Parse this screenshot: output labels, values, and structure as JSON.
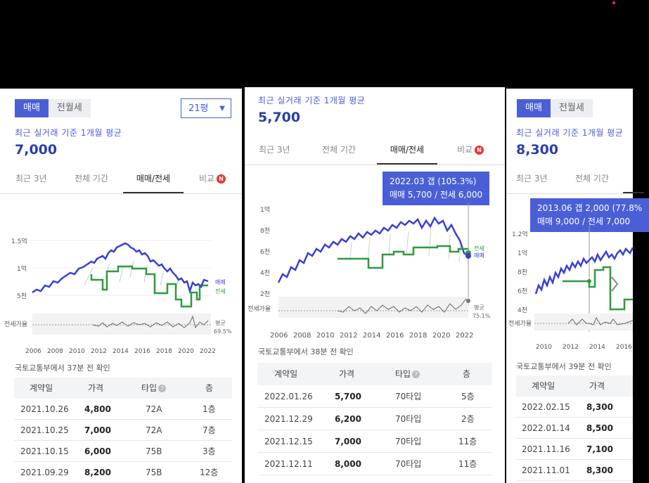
{
  "panels": [
    {
      "toggle": [
        "매매",
        "전월세"
      ],
      "dropdown": "21평",
      "subtitle": "최근 실거래 기준 1개월 평균",
      "price": "7,000",
      "tabs": [
        "최근 3년",
        "전체 기간",
        "매매/전세",
        "비교"
      ],
      "badge": "N",
      "y_ticks": [
        "1.5억",
        "1억",
        "5천"
      ],
      "gap_label": "전세가율",
      "legend": [
        "매매",
        "전세"
      ],
      "gap_legend": [
        "평균",
        "69.5%"
      ],
      "x_ticks": [
        "2006",
        "2008",
        "2010",
        "2012",
        "2014",
        "2016",
        "2018",
        "2020",
        "2022"
      ],
      "source": "국토교통부에서 37분 전 확인",
      "headers": [
        "계약일",
        "가격",
        "타입",
        "층"
      ],
      "rows": [
        [
          "2021.10.26",
          "4,800",
          "72A",
          "1층"
        ],
        [
          "2021.10.25",
          "7,000",
          "72A",
          "7층"
        ],
        [
          "2021.10.15",
          "6,000",
          "75B",
          "3층"
        ],
        [
          "2021.09.29",
          "8,200",
          "75B",
          "12층"
        ]
      ]
    },
    {
      "subtitle": "최근 실거래 기준 1개월 평균",
      "price": "5,700",
      "tabs": [
        "최근 3년",
        "전체 기간",
        "매매/전세",
        "비교"
      ],
      "badge": "N",
      "tooltip": [
        "2022.03  갭 (105.3%)",
        "매매 5,700 / 전세 6,000"
      ],
      "y_ticks": [
        "1억",
        "8천",
        "6천",
        "4천",
        "2천"
      ],
      "gap_label": "전세가율",
      "legend": [
        "전세",
        "매매"
      ],
      "gap_legend": [
        "평균",
        "75.1%"
      ],
      "x_ticks": [
        "2006",
        "2008",
        "2010",
        "2012",
        "2014",
        "2016",
        "2018",
        "2020",
        "2022"
      ],
      "source": "국토교통부에서 38분 전 확인",
      "headers": [
        "계약일",
        "가격",
        "타입",
        "층"
      ],
      "rows": [
        [
          "2022.01.26",
          "5,700",
          "70타입",
          "5층"
        ],
        [
          "2021.12.29",
          "6,200",
          "70타입",
          "2층"
        ],
        [
          "2021.12.15",
          "7,000",
          "70타입",
          "11층"
        ],
        [
          "2021.12.11",
          "8,000",
          "70타입",
          "11층"
        ]
      ]
    },
    {
      "toggle": [
        "매매",
        "전월세"
      ],
      "subtitle": "최근 실거래 기준 1개월 평균",
      "price": "8,300",
      "tabs": [
        "최근 3년",
        "전체 기간"
      ],
      "tooltip": [
        "2013.06  갭 2,000 (77.8%",
        "매매 9,000 / 전세 7,000"
      ],
      "y_ticks": [
        "1.2억",
        "1억",
        "8천",
        "6천",
        "4천"
      ],
      "gap_label": "전세가율",
      "x_ticks": [
        "2010",
        "2012",
        "2014",
        "2016"
      ],
      "source": "국토교통부에서 39분 전 확인",
      "headers": [
        "계약일",
        "가격"
      ],
      "rows": [
        [
          "2022.02.15",
          "8,300"
        ],
        [
          "2022.01.14",
          "8,500"
        ],
        [
          "2021.11.16",
          "7,100"
        ],
        [
          "2021.11.01",
          "8,300"
        ]
      ]
    }
  ],
  "colors": {
    "sale": "#3a3fd4",
    "rent": "#2e9a3f",
    "accent": "#4a5fd6",
    "badge": "#e33333"
  }
}
